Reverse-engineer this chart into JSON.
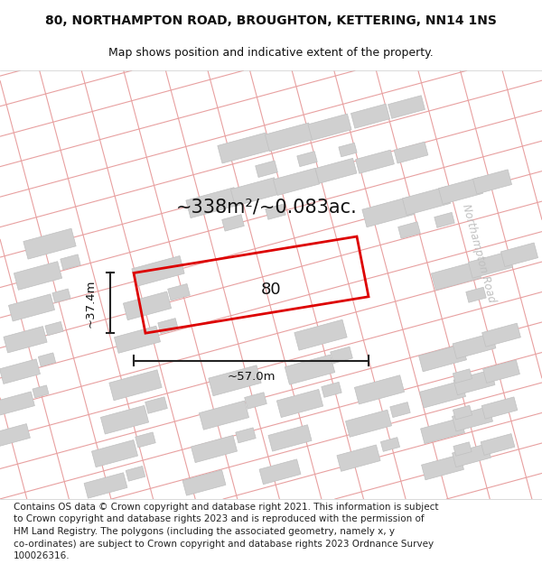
{
  "title": "80, NORTHAMPTON ROAD, BROUGHTON, KETTERING, NN14 1NS",
  "subtitle": "Map shows position and indicative extent of the property.",
  "area_text": "~338m²/~0.083ac.",
  "dim_width": "~57.0m",
  "dim_height": "~37.4m",
  "property_label": "80",
  "road_label": "Northampton Road",
  "footer": "Contains OS data © Crown copyright and database right 2021. This information is subject\nto Crown copyright and database rights 2023 and is reproduced with the permission of\nHM Land Registry. The polygons (including the associated geometry, namely x, y\nco-ordinates) are subject to Crown copyright and database rights 2023 Ordnance Survey\n100026316.",
  "bg_color": "#ffffff",
  "map_bg": "#fafafa",
  "street_color": "#e8a0a0",
  "building_color": "#d0d0d0",
  "building_edge_color": "#c0c0c0",
  "property_fill": "none",
  "property_color": "#dd0000",
  "dim_color": "#222222",
  "road_label_color": "#c0c0c0",
  "title_fontsize": 10,
  "subtitle_fontsize": 9,
  "area_fontsize": 15,
  "footer_fontsize": 7.5
}
